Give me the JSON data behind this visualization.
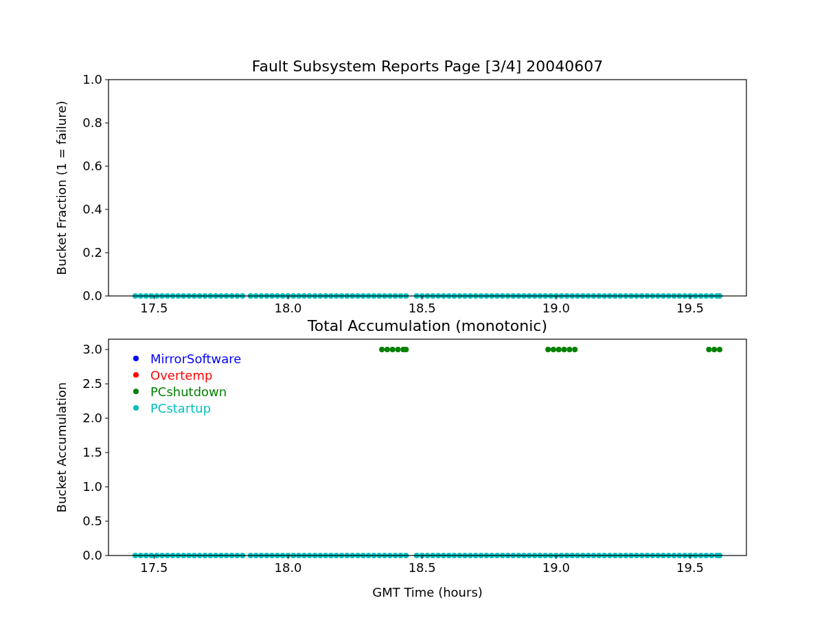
{
  "chart_data": [
    {
      "type": "scatter",
      "title": "Fault Subsystem Reports Page [3/4] 20040607",
      "ylabel": "Bucket Fraction (1 = failure)",
      "xlim": [
        17.33,
        19.71
      ],
      "xticks": [
        {
          "value": 17.5,
          "label": "17.5"
        },
        {
          "value": 18,
          "label": "18.0"
        },
        {
          "value": 18.5,
          "label": "18.5"
        },
        {
          "value": 19,
          "label": "19.0"
        },
        {
          "value": 19.5,
          "label": "19.5"
        }
      ],
      "ylim": [
        0,
        1
      ],
      "yticks": [
        {
          "value": 0,
          "label": "0.0"
        },
        {
          "value": 0.2,
          "label": "0.2"
        },
        {
          "value": 0.4,
          "label": "0.4"
        },
        {
          "value": 0.6,
          "label": "0.6"
        },
        {
          "value": 0.8,
          "label": "0.8"
        },
        {
          "value": 1,
          "label": "1.0"
        }
      ],
      "marker": "circle",
      "grid": false,
      "legend": false,
      "series": [
        {
          "color": "#00bfbf",
          "x": [
            17.43,
            17.45,
            17.47,
            17.49,
            17.51,
            17.53,
            17.55,
            17.57,
            17.59,
            17.61,
            17.63,
            17.65,
            17.67,
            17.69,
            17.71,
            17.73,
            17.75,
            17.77,
            17.79,
            17.81,
            17.83,
            17.86,
            17.88,
            17.9,
            17.92,
            17.94,
            17.96,
            17.98,
            18,
            18.02,
            18.04,
            18.06,
            18.08,
            18.1,
            18.12,
            18.14,
            18.16,
            18.18,
            18.2,
            18.22,
            18.24,
            18.26,
            18.28,
            18.3,
            18.32,
            18.34,
            18.36,
            18.38,
            18.4,
            18.42,
            18.44,
            18.48,
            18.5,
            18.52,
            18.54,
            18.56,
            18.58,
            18.6,
            18.62,
            18.64,
            18.66,
            18.68,
            18.7,
            18.72,
            18.74,
            18.76,
            18.78,
            18.8,
            18.82,
            18.84,
            18.86,
            18.88,
            18.9,
            18.92,
            18.94,
            18.96,
            18.98,
            19,
            19.02,
            19.04,
            19.06,
            19.08,
            19.1,
            19.12,
            19.14,
            19.16,
            19.18,
            19.2,
            19.22,
            19.24,
            19.26,
            19.28,
            19.3,
            19.32,
            19.34,
            19.36,
            19.38,
            19.4,
            19.42,
            19.44,
            19.46,
            19.48,
            19.5,
            19.52,
            19.54,
            19.56,
            19.58,
            19.6,
            19.61
          ],
          "values": [
            0,
            0,
            0,
            0,
            0,
            0,
            0,
            0,
            0,
            0,
            0,
            0,
            0,
            0,
            0,
            0,
            0,
            0,
            0,
            0,
            0,
            0,
            0,
            0,
            0,
            0,
            0,
            0,
            0,
            0,
            0,
            0,
            0,
            0,
            0,
            0,
            0,
            0,
            0,
            0,
            0,
            0,
            0,
            0,
            0,
            0,
            0,
            0,
            0,
            0,
            0,
            0,
            0,
            0,
            0,
            0,
            0,
            0,
            0,
            0,
            0,
            0,
            0,
            0,
            0,
            0,
            0,
            0,
            0,
            0,
            0,
            0,
            0,
            0,
            0,
            0,
            0,
            0,
            0,
            0,
            0,
            0,
            0,
            0,
            0,
            0,
            0,
            0,
            0,
            0,
            0,
            0,
            0,
            0,
            0,
            0,
            0,
            0,
            0,
            0,
            0,
            0,
            0,
            0,
            0,
            0,
            0,
            0,
            0
          ]
        }
      ]
    },
    {
      "type": "scatter",
      "title": "Total Accumulation (monotonic)",
      "xlabel": "GMT Time (hours)",
      "ylabel": "Bucket Accumulation",
      "xlim": [
        17.33,
        19.71
      ],
      "xticks": [
        {
          "value": 17.5,
          "label": "17.5"
        },
        {
          "value": 18,
          "label": "18.0"
        },
        {
          "value": 18.5,
          "label": "18.5"
        },
        {
          "value": 19,
          "label": "19.0"
        },
        {
          "value": 19.5,
          "label": "19.5"
        }
      ],
      "ylim": [
        0,
        3.15
      ],
      "yticks": [
        {
          "value": 0,
          "label": "0.0"
        },
        {
          "value": 0.5,
          "label": "0.5"
        },
        {
          "value": 1,
          "label": "1.0"
        },
        {
          "value": 1.5,
          "label": "1.5"
        },
        {
          "value": 2,
          "label": "2.0"
        },
        {
          "value": 2.5,
          "label": "2.5"
        },
        {
          "value": 3,
          "label": "3.0"
        }
      ],
      "marker": "circle",
      "grid": false,
      "legend": "top left",
      "series": [
        {
          "name": "MirrorSoftware",
          "color": "#0000ff"
        },
        {
          "name": "Overtemp",
          "color": "#ff0000"
        },
        {
          "name": "PCshutdown",
          "color": "#008000",
          "x": [
            18.35,
            18.37,
            18.39,
            18.41,
            18.43,
            18.44,
            18.97,
            18.99,
            19.01,
            19.03,
            19.05,
            19.07,
            19.57,
            19.59,
            19.61
          ],
          "values": [
            3,
            3,
            3,
            3,
            3,
            3,
            3,
            3,
            3,
            3,
            3,
            3,
            3,
            3,
            3
          ]
        },
        {
          "name": "PCstartup",
          "color": "#00bfbf",
          "x": [
            17.43,
            17.45,
            17.47,
            17.49,
            17.51,
            17.53,
            17.55,
            17.57,
            17.59,
            17.61,
            17.63,
            17.65,
            17.67,
            17.69,
            17.71,
            17.73,
            17.75,
            17.77,
            17.79,
            17.81,
            17.83,
            17.86,
            17.88,
            17.9,
            17.92,
            17.94,
            17.96,
            17.98,
            18,
            18.02,
            18.04,
            18.06,
            18.08,
            18.1,
            18.12,
            18.14,
            18.16,
            18.18,
            18.2,
            18.22,
            18.24,
            18.26,
            18.28,
            18.3,
            18.32,
            18.34,
            18.36,
            18.38,
            18.4,
            18.42,
            18.44,
            18.48,
            18.5,
            18.52,
            18.54,
            18.56,
            18.58,
            18.6,
            18.62,
            18.64,
            18.66,
            18.68,
            18.7,
            18.72,
            18.74,
            18.76,
            18.78,
            18.8,
            18.82,
            18.84,
            18.86,
            18.88,
            18.9,
            18.92,
            18.94,
            18.96,
            18.98,
            19,
            19.02,
            19.04,
            19.06,
            19.08,
            19.1,
            19.12,
            19.14,
            19.16,
            19.18,
            19.2,
            19.22,
            19.24,
            19.26,
            19.28,
            19.3,
            19.32,
            19.34,
            19.36,
            19.38,
            19.4,
            19.42,
            19.44,
            19.46,
            19.48,
            19.5,
            19.52,
            19.54,
            19.56,
            19.58,
            19.6,
            19.61
          ],
          "values": [
            0,
            0,
            0,
            0,
            0,
            0,
            0,
            0,
            0,
            0,
            0,
            0,
            0,
            0,
            0,
            0,
            0,
            0,
            0,
            0,
            0,
            0,
            0,
            0,
            0,
            0,
            0,
            0,
            0,
            0,
            0,
            0,
            0,
            0,
            0,
            0,
            0,
            0,
            0,
            0,
            0,
            0,
            0,
            0,
            0,
            0,
            0,
            0,
            0,
            0,
            0,
            0,
            0,
            0,
            0,
            0,
            0,
            0,
            0,
            0,
            0,
            0,
            0,
            0,
            0,
            0,
            0,
            0,
            0,
            0,
            0,
            0,
            0,
            0,
            0,
            0,
            0,
            0,
            0,
            0,
            0,
            0,
            0,
            0,
            0,
            0,
            0,
            0,
            0,
            0,
            0,
            0,
            0,
            0,
            0,
            0,
            0,
            0,
            0,
            0,
            0,
            0,
            0,
            0,
            0,
            0,
            0,
            0,
            0
          ]
        }
      ]
    }
  ]
}
